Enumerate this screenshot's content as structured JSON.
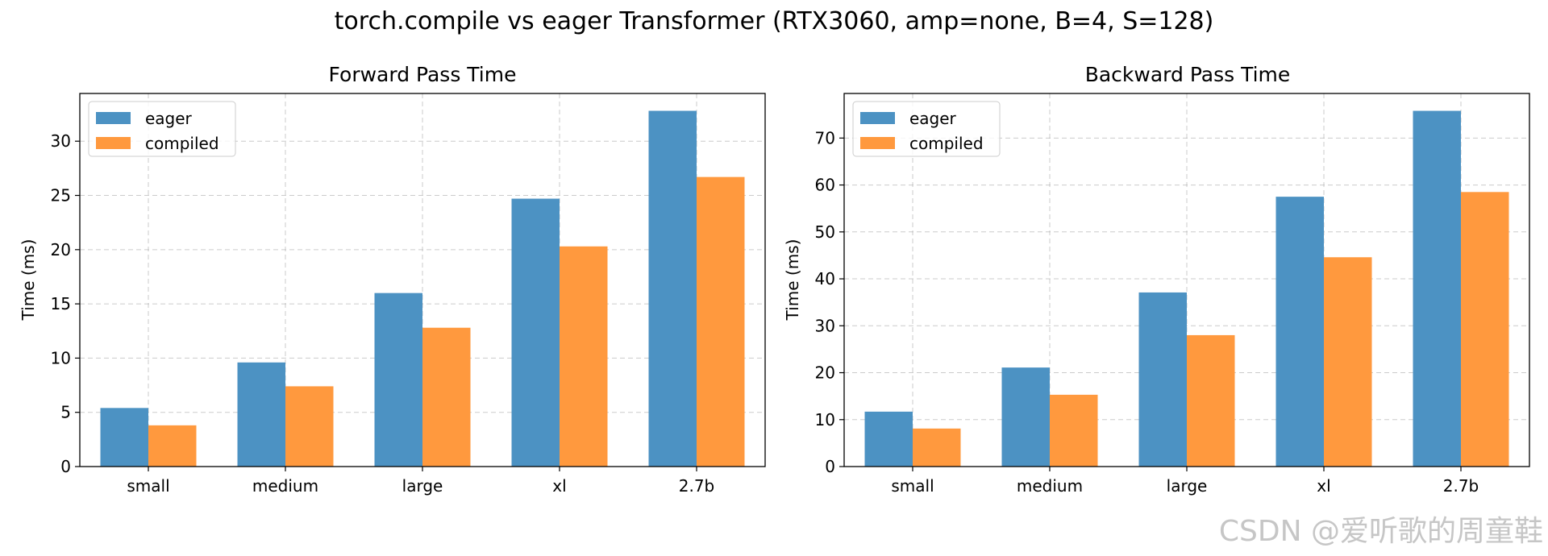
{
  "figure": {
    "suptitle": "torch.compile vs eager Transformer (RTX3060, amp=none, B=4, S=128)"
  },
  "watermark": "CSDN @爱听歌的周童鞋",
  "chart_data": [
    {
      "type": "bar",
      "title": "Forward Pass Time",
      "xlabel": "",
      "ylabel": "Time (ms)",
      "ylim": [
        0,
        34.4
      ],
      "yticks": [
        0,
        5,
        10,
        15,
        20,
        25,
        30
      ],
      "grid": true,
      "legend_position": "upper-left",
      "categories": [
        "small",
        "medium",
        "large",
        "xl",
        "2.7b"
      ],
      "series": [
        {
          "name": "eager",
          "color": "#4c92c3",
          "values": [
            5.4,
            9.6,
            16.0,
            24.7,
            32.8
          ]
        },
        {
          "name": "compiled",
          "color": "#ff993e",
          "values": [
            3.8,
            7.4,
            12.8,
            20.3,
            26.7
          ]
        }
      ]
    },
    {
      "type": "bar",
      "title": "Backward Pass Time",
      "xlabel": "",
      "ylabel": "Time (ms)",
      "ylim": [
        0,
        79.5
      ],
      "yticks": [
        0,
        10,
        20,
        30,
        40,
        50,
        60,
        70
      ],
      "grid": true,
      "legend_position": "upper-left",
      "categories": [
        "small",
        "medium",
        "large",
        "xl",
        "2.7b"
      ],
      "series": [
        {
          "name": "eager",
          "color": "#4c92c3",
          "values": [
            11.7,
            21.1,
            37.1,
            57.5,
            75.8
          ]
        },
        {
          "name": "compiled",
          "color": "#ff993e",
          "values": [
            8.1,
            15.3,
            28.0,
            44.6,
            58.5
          ]
        }
      ]
    }
  ]
}
